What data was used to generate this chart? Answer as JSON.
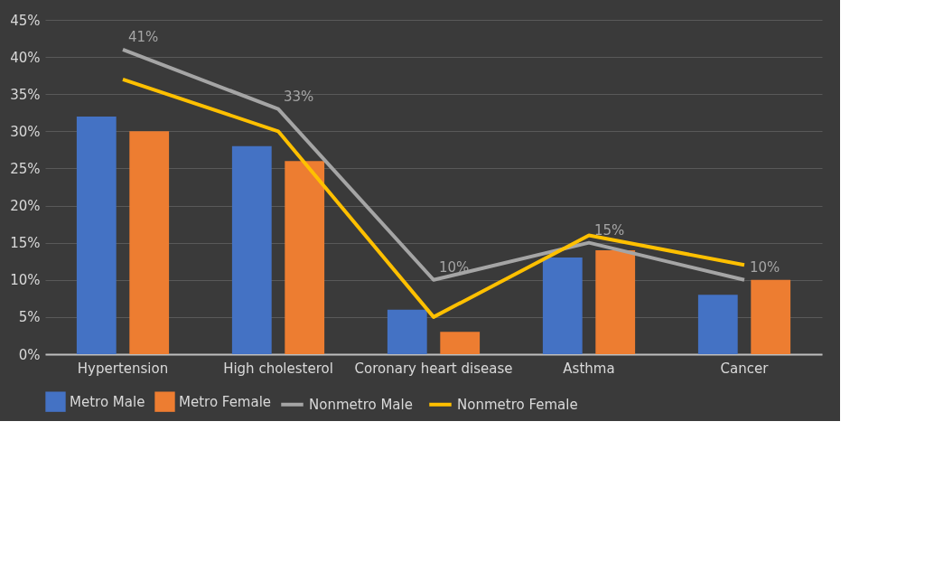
{
  "chart_data": {
    "type": "bar",
    "categories": [
      "Hypertension",
      "High cholesterol",
      "Coronary heart disease",
      "Asthma",
      "Cancer"
    ],
    "series": [
      {
        "name": "Metro Male",
        "color": "#4472c4",
        "values": [
          32,
          28,
          6,
          13,
          8
        ]
      },
      {
        "name": "Metro Female",
        "color": "#ed7d31",
        "values": [
          30,
          26,
          3,
          14,
          10
        ]
      },
      {
        "name": "Nonmetro Male",
        "type": "line",
        "color": "#a5a5a5",
        "values": [
          41,
          33,
          10,
          15,
          10
        ],
        "value_labels": [
          "41%",
          "33%",
          "10%",
          "15%",
          "10%"
        ]
      },
      {
        "name": "Nonmetro Female",
        "type": "line",
        "color": "#ffc000",
        "values": [
          37,
          30,
          5,
          16,
          12
        ]
      }
    ],
    "ylim": [
      0,
      45
    ],
    "yticks": [
      {
        "value": 0,
        "label": "0%"
      },
      {
        "value": 5,
        "label": "5%"
      },
      {
        "value": 10,
        "label": "10%"
      },
      {
        "value": 15,
        "label": "15%"
      },
      {
        "value": 20,
        "label": "20%"
      },
      {
        "value": 25,
        "label": "25%"
      },
      {
        "value": 30,
        "label": "30%"
      },
      {
        "value": 35,
        "label": "35%"
      },
      {
        "value": 40,
        "label": "40%"
      },
      {
        "value": 45,
        "label": "45%"
      }
    ],
    "grid": "y",
    "legend": "bottom",
    "marker": "none",
    "line_style": "solid"
  }
}
